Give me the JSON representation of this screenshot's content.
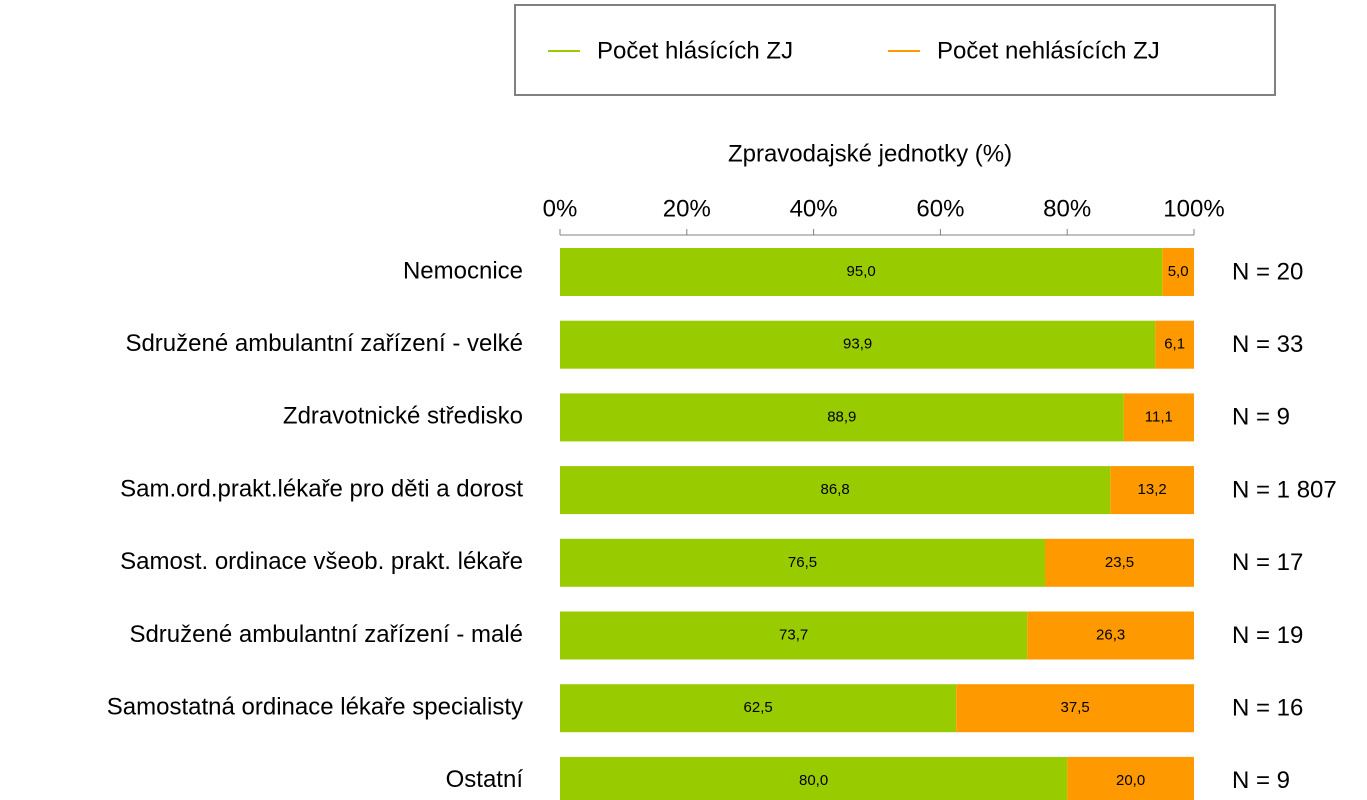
{
  "chart_data": {
    "type": "stacked_bar_horizontal",
    "axis_label": "Zpravodajské jednotky (%)",
    "categories": [
      "Nemocnice",
      "Sdružené ambulantní zařízení - velké",
      "Zdravotnické středisko",
      "Sam.ord.prakt.lékaře pro děti a dorost",
      "Samost. ordinace všeob. prakt. lékaře",
      "Sdružené ambulantní zařízení - malé",
      "Samostatná ordinace lékaře specialisty",
      "Ostatní"
    ],
    "series": [
      {
        "name": "Počet hlásících ZJ",
        "color": "#99cc00",
        "values": [
          95.0,
          93.9,
          88.9,
          86.8,
          76.5,
          73.7,
          62.5,
          80.0
        ],
        "value_labels": [
          "95,0",
          "93,9",
          "88,9",
          "86,8",
          "76,5",
          "73,7",
          "62,5",
          "80,0"
        ]
      },
      {
        "name": "Počet nehlásících ZJ",
        "color": "#ff9900",
        "values": [
          5.0,
          6.1,
          11.1,
          13.2,
          23.5,
          26.3,
          37.5,
          20.0
        ],
        "value_labels": [
          "5,0",
          "6,1",
          "11,1",
          "13,2",
          "23,5",
          "26,3",
          "37,5",
          "20,0"
        ]
      }
    ],
    "annotations": [
      "N = 20",
      "N = 33",
      "N = 9",
      "N = 1 807",
      "N = 17",
      "N = 19",
      "N = 16",
      "N = 9"
    ],
    "xlim": [
      0,
      100
    ],
    "xticks": [
      {
        "value": 0,
        "label": "0%"
      },
      {
        "value": 20,
        "label": "20%"
      },
      {
        "value": 40,
        "label": "40%"
      },
      {
        "value": 60,
        "label": "60%"
      },
      {
        "value": 80,
        "label": "80%"
      },
      {
        "value": 100,
        "label": "100%"
      }
    ],
    "legend": "top"
  }
}
